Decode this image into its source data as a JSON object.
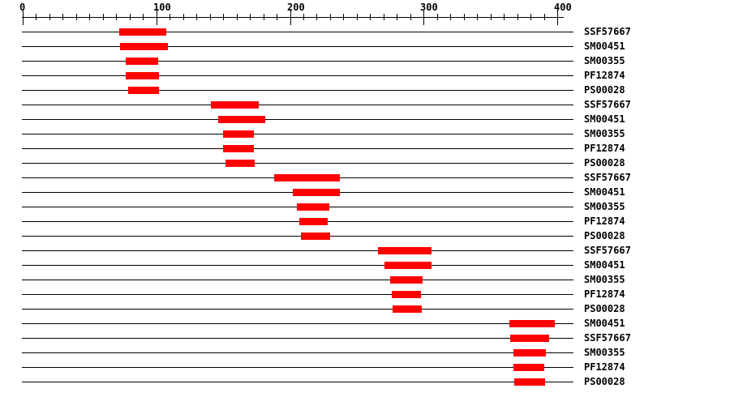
{
  "chart_data": {
    "type": "bar",
    "variant": "protein-domain-tracks",
    "title": "",
    "xlabel": "",
    "ylabel": "",
    "axis": {
      "min": 0,
      "max": 400,
      "major_tick_step": 100,
      "minor_tick_step": 10,
      "major_tick_labels": [
        "0",
        "100",
        "200",
        "300",
        "400"
      ],
      "position": "top"
    },
    "grid": false,
    "legend": false,
    "bar_color": "#ff0000",
    "line_color": "#000000",
    "rows": [
      {
        "label": "SSF57667",
        "start": 72,
        "end": 107
      },
      {
        "label": "SM00451",
        "start": 73,
        "end": 109
      },
      {
        "label": "SM00355",
        "start": 77,
        "end": 101
      },
      {
        "label": "PF12874",
        "start": 77,
        "end": 102
      },
      {
        "label": "PS00028",
        "start": 79,
        "end": 102
      },
      {
        "label": "SSF57667",
        "start": 141,
        "end": 177
      },
      {
        "label": "SM00451",
        "start": 146,
        "end": 181
      },
      {
        "label": "SM00355",
        "start": 150,
        "end": 173
      },
      {
        "label": "PF12874",
        "start": 150,
        "end": 173
      },
      {
        "label": "PS00028",
        "start": 152,
        "end": 174
      },
      {
        "label": "SSF57667",
        "start": 188,
        "end": 237
      },
      {
        "label": "SM00451",
        "start": 202,
        "end": 237
      },
      {
        "label": "SM00355",
        "start": 205,
        "end": 229
      },
      {
        "label": "PF12874",
        "start": 207,
        "end": 228
      },
      {
        "label": "PS00028",
        "start": 208,
        "end": 230
      },
      {
        "label": "SSF57667",
        "start": 266,
        "end": 306
      },
      {
        "label": "SM00451",
        "start": 271,
        "end": 306
      },
      {
        "label": "SM00355",
        "start": 275,
        "end": 299
      },
      {
        "label": "PF12874",
        "start": 276,
        "end": 298
      },
      {
        "label": "PS00028",
        "start": 277,
        "end": 299
      },
      {
        "label": "SM00451",
        "start": 364,
        "end": 398
      },
      {
        "label": "SSF57667",
        "start": 365,
        "end": 394
      },
      {
        "label": "SM00355",
        "start": 367,
        "end": 391
      },
      {
        "label": "PF12874",
        "start": 367,
        "end": 390
      },
      {
        "label": "PS00028",
        "start": 368,
        "end": 391
      }
    ]
  }
}
